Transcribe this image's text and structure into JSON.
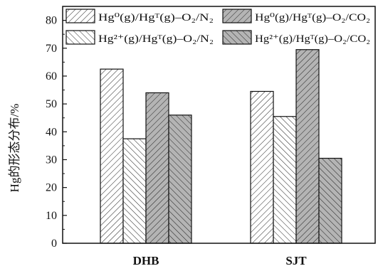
{
  "chart_data": {
    "type": "bar",
    "categories": [
      "DHB",
      "SJT"
    ],
    "series": [
      {
        "name": "Hg⁰(g)/Hgᵀ(g)–O₂/N₂",
        "values": [
          62.5,
          54.5
        ],
        "fill": "#ffffff",
        "hatch": "forward"
      },
      {
        "name": "Hg²⁺(g)/Hgᵀ(g)–O₂/N₂",
        "values": [
          37.5,
          45.5
        ],
        "fill": "#ffffff",
        "hatch": "back"
      },
      {
        "name": "Hg⁰(g)/Hgᵀ(g)–O₂/CO₂",
        "values": [
          54.0,
          69.5
        ],
        "fill": "#b4b4b4",
        "hatch": "forward"
      },
      {
        "name": "Hg²⁺(g)/Hgᵀ(g)–O₂/CO₂",
        "values": [
          46.0,
          30.5
        ],
        "fill": "#b4b4b4",
        "hatch": "back"
      }
    ],
    "legend_order": [
      0,
      2,
      1,
      3
    ],
    "ylabel": "Hg的形态分布/%",
    "xlabel": "",
    "ylim": [
      0,
      85
    ],
    "yticks": [
      0,
      10,
      20,
      30,
      40,
      50,
      60,
      70,
      80
    ],
    "grid": false,
    "legend_position": "top"
  }
}
